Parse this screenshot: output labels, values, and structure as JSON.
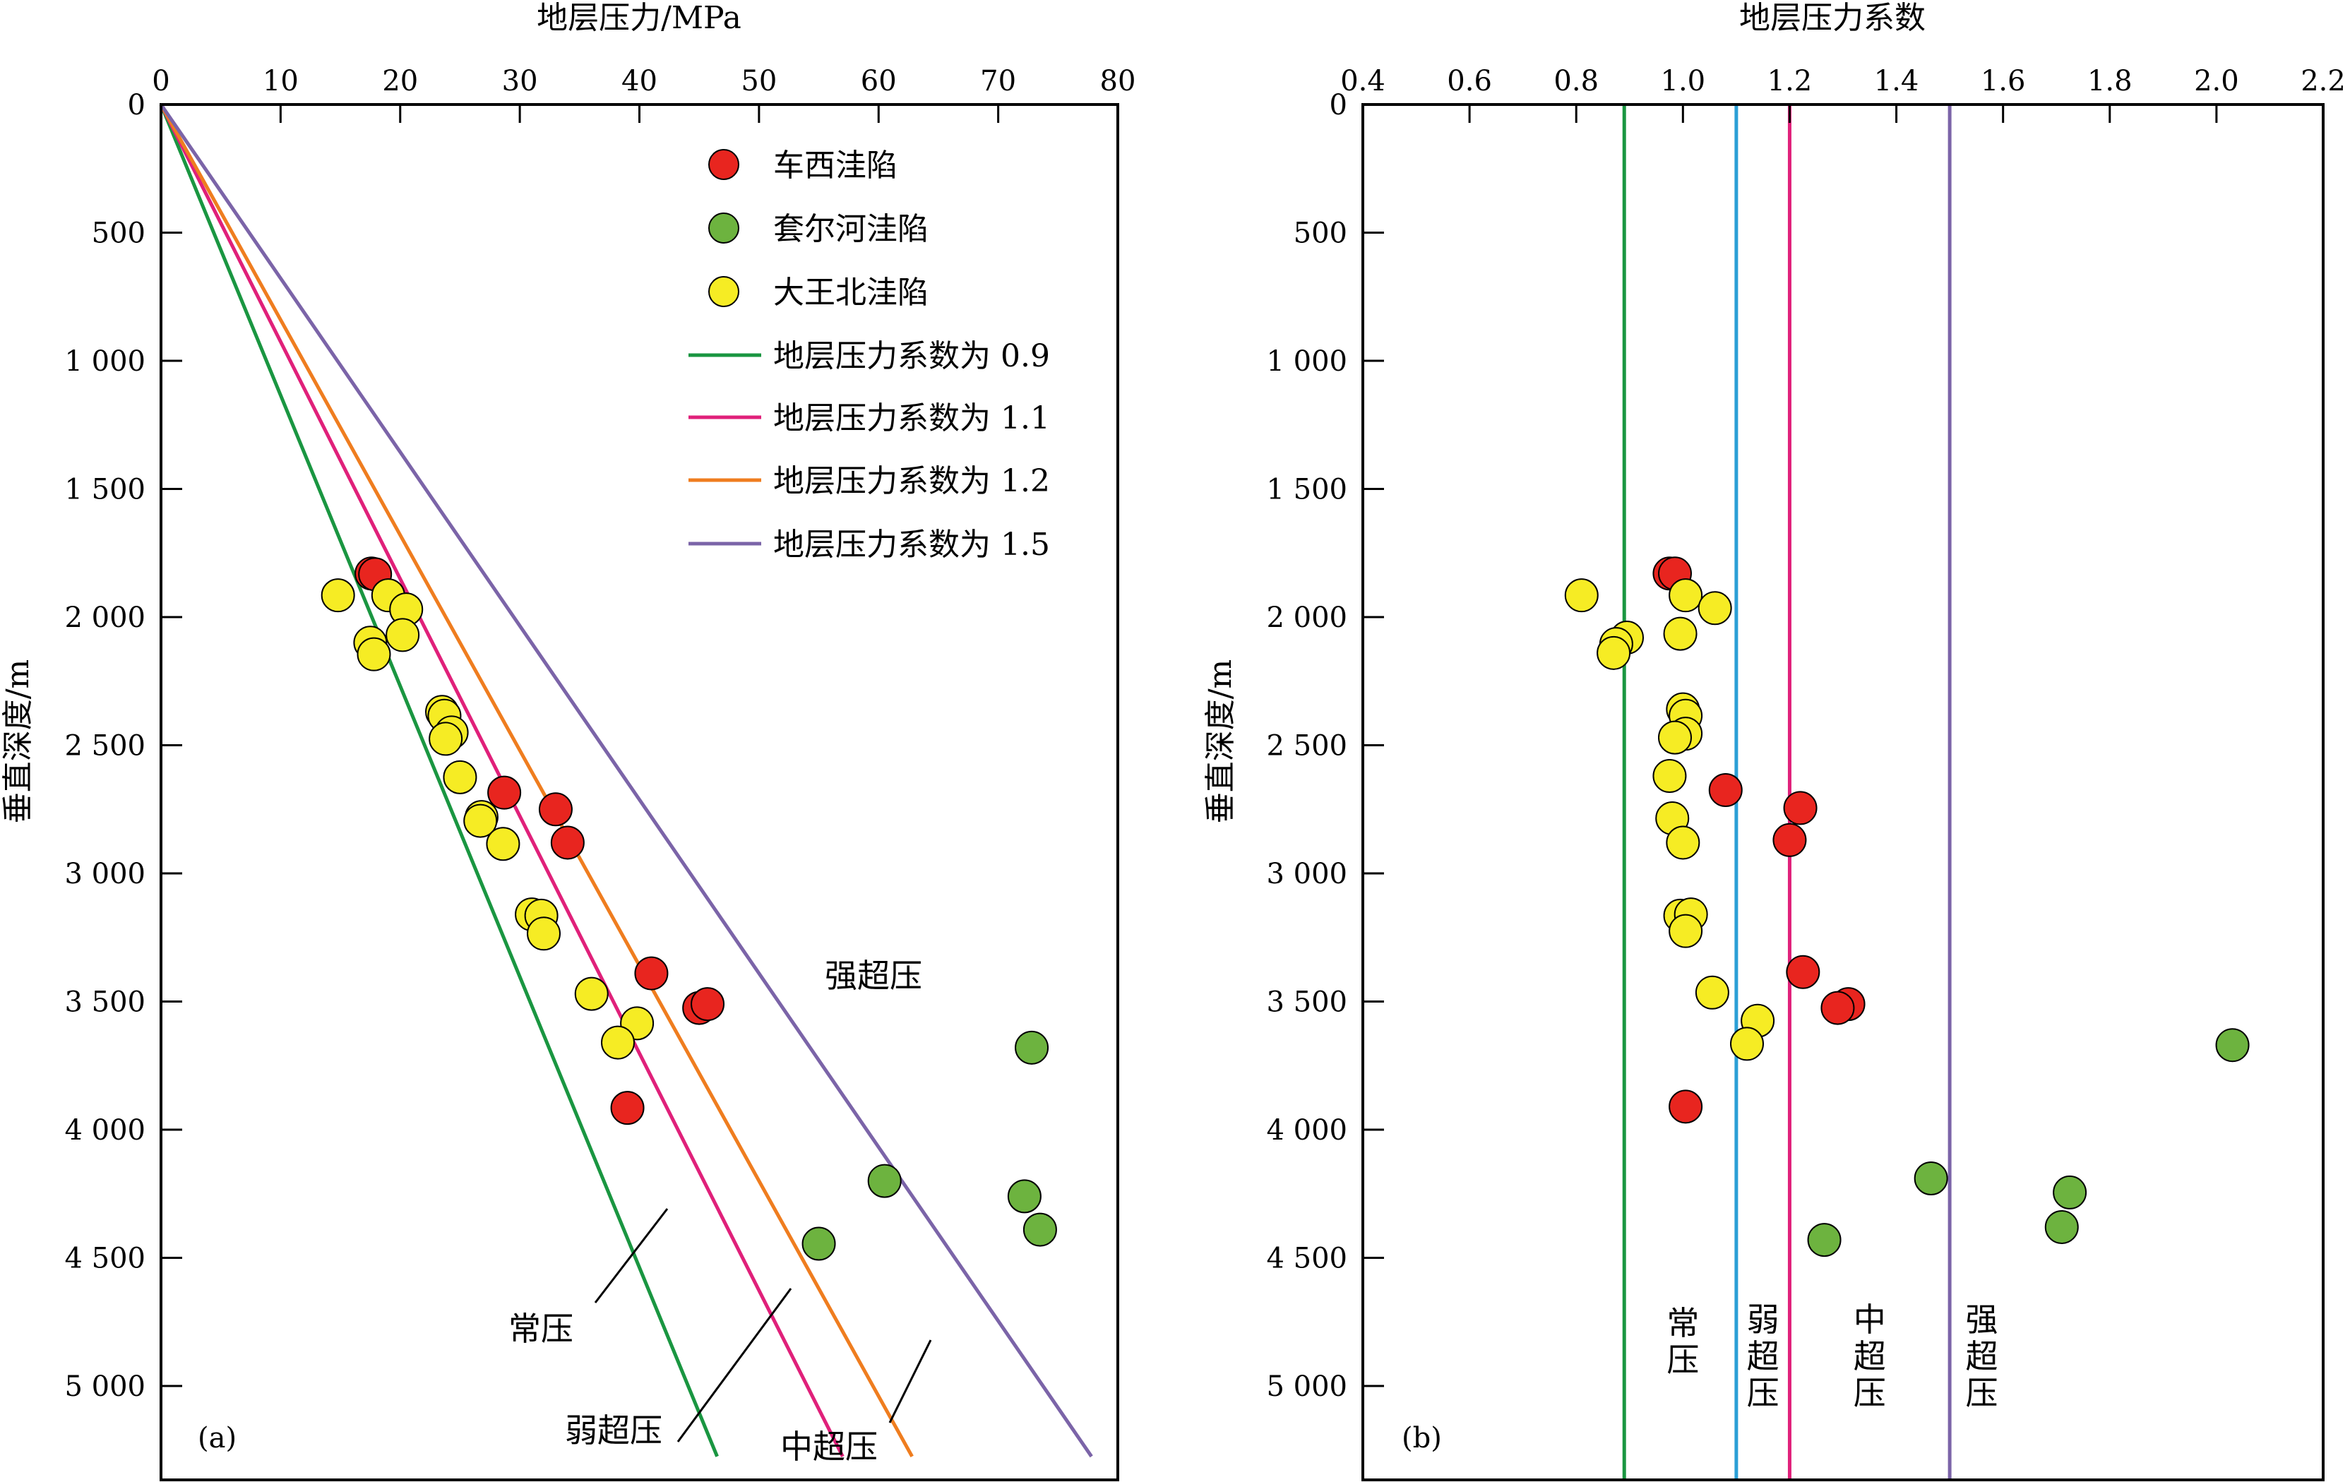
{
  "colors": {
    "chexi": "#e8251f",
    "taoerhe": "#6db33f",
    "dawangbei": "#f6ec24",
    "coef_0_9": "#1a9641",
    "coef_1_1": "#e0207a",
    "coef_1_2": "#ef7d1f",
    "coef_1_5": "#7b64a8",
    "coef_1_1_b": "#2b9fd6",
    "coef_1_2_b": "#e0207a"
  },
  "chart_data": [
    {
      "type": "scatter",
      "panel_label": "(a)",
      "xlabel": "地层压力/MPa",
      "ylabel": "垂直深度/m",
      "xlim": [
        0,
        80
      ],
      "ylim": [
        0,
        5400
      ],
      "y_inverted": true,
      "x_axis_position": "top",
      "x_ticks": [
        "0",
        "10",
        "20",
        "30",
        "40",
        "50",
        "60",
        "70",
        "80"
      ],
      "y_ticks": [
        "0",
        "500",
        "1 000",
        "1 500",
        "2 000",
        "2 500",
        "3 000",
        "3 500",
        "4 000",
        "4 500",
        "5 000"
      ],
      "legend_position": "upper-right",
      "series": [
        {
          "name": "车西洼陷",
          "kind": "points",
          "color_key": "chexi",
          "points": [
            [
              17.6,
              1830
            ],
            [
              17.9,
              1833
            ],
            [
              28.7,
              2685
            ],
            [
              33.0,
              2750
            ],
            [
              34.0,
              2880
            ],
            [
              41.0,
              3390
            ],
            [
              45.0,
              3525
            ],
            [
              45.7,
              3510
            ],
            [
              39.0,
              3915
            ]
          ]
        },
        {
          "name": "套尔河洼陷",
          "kind": "points",
          "color_key": "taoerhe",
          "points": [
            [
              72.8,
              3680
            ],
            [
              60.5,
              4200
            ],
            [
              72.2,
              4260
            ],
            [
              73.5,
              4390
            ],
            [
              55.0,
              4445
            ]
          ]
        },
        {
          "name": "大王北洼陷",
          "kind": "points",
          "color_key": "dawangbei",
          "points": [
            [
              14.8,
              1915
            ],
            [
              19.0,
              1915
            ],
            [
              20.5,
              1970
            ],
            [
              20.2,
              2070
            ],
            [
              17.5,
              2100
            ],
            [
              17.8,
              2145
            ],
            [
              23.5,
              2370
            ],
            [
              23.7,
              2385
            ],
            [
              24.3,
              2450
            ],
            [
              23.8,
              2475
            ],
            [
              25.0,
              2625
            ],
            [
              26.8,
              2780
            ],
            [
              26.7,
              2795
            ],
            [
              28.6,
              2885
            ],
            [
              31.0,
              3160
            ],
            [
              31.8,
              3165
            ],
            [
              32.0,
              3235
            ],
            [
              36.0,
              3470
            ],
            [
              39.8,
              3585
            ],
            [
              38.2,
              3660
            ]
          ]
        },
        {
          "name": "地层压力系数为 0.9",
          "kind": "line",
          "color_key": "coef_0_9",
          "points": [
            [
              0,
              0
            ],
            [
              46.5,
              5275
            ]
          ]
        },
        {
          "name": "地层压力系数为 1.1",
          "kind": "line",
          "color_key": "coef_1_1",
          "points": [
            [
              0,
              0
            ],
            [
              57.0,
              5275
            ]
          ]
        },
        {
          "name": "地层压力系数为 1.2",
          "kind": "line",
          "color_key": "coef_1_2",
          "points": [
            [
              0,
              0
            ],
            [
              62.8,
              5275
            ]
          ]
        },
        {
          "name": "地层压力系数为 1.5",
          "kind": "line",
          "color_key": "coef_1_5",
          "points": [
            [
              0,
              0
            ],
            [
              77.8,
              5275
            ]
          ]
        }
      ],
      "annotations": [
        "强超压",
        "常压",
        "弱超压",
        "中超压"
      ]
    },
    {
      "type": "scatter",
      "panel_label": "(b)",
      "xlabel": "地层压力系数",
      "ylabel": "垂直深度/m",
      "xlim": [
        0.4,
        2.2
      ],
      "ylim": [
        0,
        5400
      ],
      "y_inverted": true,
      "x_axis_position": "top",
      "x_ticks": [
        "0.4",
        "0.6",
        "0.8",
        "1.0",
        "1.2",
        "1.4",
        "1.6",
        "1.8",
        "2.0",
        "2.2"
      ],
      "y_ticks": [
        "0",
        "500",
        "1 000",
        "1 500",
        "2 000",
        "2 500",
        "3 000",
        "3 500",
        "4 000",
        "4 500",
        "5 000"
      ],
      "reference_lines": [
        {
          "x": 0.89,
          "color_key": "coef_0_9"
        },
        {
          "x": 1.1,
          "color_key": "coef_1_1_b"
        },
        {
          "x": 1.2,
          "color_key": "coef_1_2_b"
        },
        {
          "x": 1.5,
          "color_key": "coef_1_5"
        }
      ],
      "series": [
        {
          "name": "车西洼陷",
          "kind": "points",
          "color_key": "chexi",
          "points": [
            [
              0.975,
              1830
            ],
            [
              0.985,
              1830
            ],
            [
              1.08,
              2675
            ],
            [
              1.22,
              2745
            ],
            [
              1.2,
              2870
            ],
            [
              1.225,
              3385
            ],
            [
              1.31,
              3510
            ],
            [
              1.29,
              3525
            ],
            [
              1.005,
              3910
            ]
          ]
        },
        {
          "name": "套尔河洼陷",
          "kind": "points",
          "color_key": "taoerhe",
          "points": [
            [
              2.03,
              3670
            ],
            [
              1.465,
              4190
            ],
            [
              1.725,
              4245
            ],
            [
              1.71,
              4380
            ],
            [
              1.265,
              4430
            ]
          ]
        },
        {
          "name": "大王北洼陷",
          "kind": "points",
          "color_key": "dawangbei",
          "points": [
            [
              0.81,
              1915
            ],
            [
              1.005,
              1915
            ],
            [
              1.06,
              1965
            ],
            [
              0.995,
              2065
            ],
            [
              0.895,
              2080
            ],
            [
              0.875,
              2105
            ],
            [
              0.87,
              2140
            ],
            [
              1.0,
              2360
            ],
            [
              1.005,
              2385
            ],
            [
              1.005,
              2455
            ],
            [
              0.985,
              2470
            ],
            [
              0.975,
              2620
            ],
            [
              0.98,
              2785
            ],
            [
              1.0,
              2880
            ],
            [
              0.995,
              3165
            ],
            [
              1.015,
              3160
            ],
            [
              1.005,
              3225
            ],
            [
              1.055,
              3465
            ],
            [
              1.14,
              3575
            ],
            [
              1.12,
              3665
            ]
          ]
        }
      ],
      "annotations": [
        "常压",
        "弱超压",
        "中超压",
        "强超压"
      ]
    }
  ]
}
